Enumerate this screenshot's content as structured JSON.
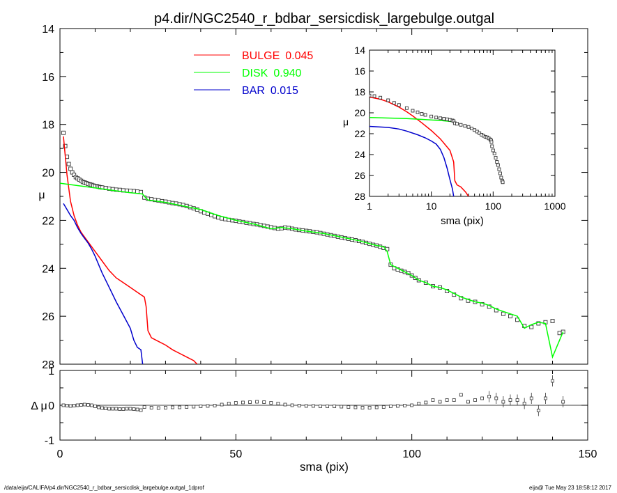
{
  "chart_data": [
    {
      "type": "line",
      "panel": "main",
      "title": "p4.dir/NGC2540_r_bdbar_sersicdisk_largebulge.outgal",
      "xlabel": "",
      "ylabel": "μ",
      "xlim": [
        0,
        150
      ],
      "ylim": [
        28,
        14
      ],
      "y_inverted": true,
      "yticks": [
        "14",
        "16",
        "18",
        "20",
        "22",
        "24",
        "26",
        "28"
      ],
      "legend": [
        {
          "label": "BULGE",
          "value": "0.045",
          "color": "#ff0000"
        },
        {
          "label": "DISK",
          "value": "0.940",
          "color": "#00ff00"
        },
        {
          "label": "BAR",
          "value": "0.015",
          "color": "#0000cc"
        }
      ],
      "legend_position": "top-center",
      "series": [
        {
          "name": "BULGE",
          "color": "#ff0000",
          "x": [
            1,
            2,
            3,
            4,
            5,
            6,
            7,
            8,
            10,
            12,
            14,
            16,
            18,
            20,
            22,
            23,
            24,
            24.5,
            25,
            26,
            28,
            30,
            32,
            34,
            36,
            38,
            39
          ],
          "y": [
            18.5,
            20.1,
            21.2,
            21.8,
            22.2,
            22.5,
            22.7,
            22.9,
            23.3,
            23.7,
            24.1,
            24.4,
            24.6,
            24.8,
            25.0,
            25.1,
            25.2,
            25.6,
            26.6,
            26.9,
            27.05,
            27.2,
            27.4,
            27.55,
            27.7,
            27.85,
            28.0
          ]
        },
        {
          "name": "DISK",
          "color": "#00ff00",
          "x": [
            0,
            5,
            10,
            15,
            20,
            23.5,
            24,
            25,
            30,
            35,
            40,
            45,
            50,
            55,
            60,
            63,
            66,
            70,
            75,
            80,
            85,
            90,
            92,
            93,
            94,
            96,
            98,
            100,
            102,
            104,
            106,
            108,
            110,
            112,
            114,
            116,
            118,
            120,
            122,
            124,
            126,
            128,
            130,
            132,
            134,
            136,
            138,
            140,
            142,
            143
          ],
          "y": [
            20.45,
            20.55,
            20.65,
            20.75,
            20.85,
            20.9,
            21.0,
            21.15,
            21.25,
            21.4,
            21.55,
            21.8,
            22.0,
            22.15,
            22.35,
            22.3,
            22.35,
            22.45,
            22.55,
            22.7,
            22.85,
            23.05,
            23.1,
            23.3,
            23.85,
            24.0,
            24.15,
            24.3,
            24.5,
            24.6,
            24.75,
            24.8,
            24.9,
            25.05,
            25.2,
            25.3,
            25.4,
            25.45,
            25.55,
            25.7,
            25.8,
            25.9,
            26.0,
            26.5,
            26.35,
            26.25,
            26.3,
            27.7,
            27.0,
            26.65
          ]
        },
        {
          "name": "BAR",
          "color": "#0000cc",
          "x": [
            1,
            2,
            3,
            4,
            5,
            6,
            7,
            8,
            9,
            10,
            11,
            12,
            14,
            16,
            18,
            20,
            21,
            22,
            23,
            23.5
          ],
          "y": [
            21.3,
            21.55,
            21.8,
            22.0,
            22.3,
            22.55,
            22.75,
            22.95,
            23.2,
            23.5,
            23.85,
            24.2,
            24.8,
            25.4,
            25.95,
            26.5,
            27.0,
            27.3,
            27.4,
            28.0
          ]
        },
        {
          "name": "data",
          "x": [
            1,
            1.5,
            2,
            2.5,
            3,
            3.5,
            4,
            4.5,
            5,
            5.5,
            6,
            6.5,
            7,
            7.5,
            8,
            8.5,
            9,
            9.5,
            10,
            10.5,
            11,
            11.5,
            12,
            13,
            14,
            15,
            16,
            17,
            18,
            19,
            20,
            21,
            22,
            23,
            24,
            25,
            26,
            27,
            28,
            29,
            30,
            31,
            32,
            33,
            34,
            35,
            36,
            37,
            38,
            39,
            40,
            41,
            42,
            43,
            44,
            45,
            46,
            47,
            48,
            49,
            50,
            51,
            52,
            53,
            54,
            55,
            56,
            57,
            58,
            59,
            60,
            61,
            62,
            63,
            64,
            65,
            66,
            67,
            68,
            69,
            70,
            71,
            72,
            73,
            74,
            75,
            76,
            77,
            78,
            79,
            80,
            81,
            82,
            83,
            84,
            85,
            86,
            87,
            88,
            89,
            90,
            91,
            92,
            93,
            94,
            95,
            96,
            97,
            98,
            99,
            100,
            101,
            102,
            104,
            106,
            108,
            110,
            112,
            114,
            116,
            118,
            120,
            122,
            124,
            126,
            128,
            130,
            132,
            134,
            136,
            138,
            140,
            142,
            143
          ],
          "y": [
            18.35,
            18.9,
            19.35,
            19.65,
            19.85,
            20.0,
            20.1,
            20.2,
            20.25,
            20.3,
            20.35,
            20.4,
            20.42,
            20.45,
            20.48,
            20.5,
            20.52,
            20.55,
            20.57,
            20.58,
            20.6,
            20.62,
            20.63,
            20.65,
            20.68,
            20.7,
            20.72,
            20.73,
            20.75,
            20.76,
            20.77,
            20.78,
            20.8,
            20.82,
            21.05,
            21.1,
            21.12,
            21.15,
            21.17,
            21.2,
            21.22,
            21.25,
            21.28,
            21.3,
            21.33,
            21.36,
            21.4,
            21.45,
            21.5,
            21.55,
            21.62,
            21.68,
            21.72,
            21.78,
            21.83,
            21.88,
            21.92,
            21.95,
            21.98,
            22.0,
            22.02,
            22.05,
            22.07,
            22.1,
            22.12,
            22.15,
            22.17,
            22.2,
            22.23,
            22.26,
            22.29,
            22.32,
            22.35,
            22.33,
            22.3,
            22.32,
            22.35,
            22.38,
            22.4,
            22.42,
            22.44,
            22.46,
            22.48,
            22.5,
            22.53,
            22.56,
            22.59,
            22.62,
            22.65,
            22.68,
            22.71,
            22.74,
            22.77,
            22.8,
            22.83,
            22.86,
            22.9,
            22.94,
            22.98,
            23.02,
            23.05,
            23.1,
            23.15,
            23.2,
            23.85,
            24.0,
            24.05,
            24.1,
            24.15,
            24.2,
            24.3,
            24.4,
            24.5,
            24.6,
            24.75,
            24.8,
            24.95,
            25.1,
            25.25,
            25.35,
            25.4,
            25.5,
            25.6,
            25.75,
            25.9,
            26.0,
            26.15,
            26.4,
            26.45,
            26.3,
            26.25,
            26.2,
            26.7,
            26.65
          ]
        }
      ]
    },
    {
      "type": "scatter",
      "panel": "residual",
      "xlabel": "sma (pix)",
      "ylabel": "Δ μ",
      "xlim": [
        0,
        150
      ],
      "ylim": [
        -1,
        1
      ],
      "xticks": [
        "0",
        "50",
        "100",
        "150"
      ],
      "yticks": [
        "-1",
        "0",
        "1"
      ],
      "series": [
        {
          "name": "residual",
          "x": [
            1,
            2,
            3,
            4,
            5,
            6,
            7,
            8,
            9,
            10,
            11,
            12,
            13,
            14,
            15,
            16,
            17,
            18,
            19,
            20,
            21,
            22,
            23,
            24,
            26,
            28,
            30,
            32,
            34,
            36,
            38,
            40,
            42,
            44,
            46,
            48,
            50,
            52,
            54,
            56,
            58,
            60,
            62,
            64,
            66,
            68,
            70,
            72,
            74,
            76,
            78,
            80,
            82,
            84,
            86,
            88,
            90,
            92,
            94,
            96,
            98,
            100,
            102,
            104,
            106,
            108,
            110,
            112,
            114,
            116,
            118,
            120,
            122,
            124,
            126,
            128,
            130,
            132,
            134,
            136,
            138,
            140,
            143
          ],
          "y": [
            0.0,
            -0.01,
            -0.02,
            -0.01,
            0.0,
            0.01,
            0.02,
            0.01,
            0.0,
            -0.03,
            -0.06,
            -0.08,
            -0.09,
            -0.1,
            -0.1,
            -0.1,
            -0.11,
            -0.11,
            -0.1,
            -0.1,
            -0.11,
            -0.12,
            -0.14,
            -0.05,
            -0.07,
            -0.08,
            -0.07,
            -0.06,
            -0.06,
            -0.05,
            -0.04,
            -0.03,
            -0.02,
            -0.01,
            0.02,
            0.05,
            0.07,
            0.08,
            0.09,
            0.1,
            0.09,
            0.07,
            0.05,
            0.02,
            0.0,
            -0.01,
            -0.02,
            -0.02,
            -0.03,
            -0.03,
            -0.03,
            -0.04,
            -0.05,
            -0.06,
            -0.07,
            -0.07,
            -0.06,
            -0.05,
            -0.03,
            -0.02,
            -0.01,
            0.0,
            0.05,
            0.08,
            0.15,
            0.1,
            0.15,
            0.15,
            0.3,
            0.1,
            0.15,
            0.2,
            0.25,
            0.2,
            0.1,
            0.15,
            0.15,
            0.05,
            0.2,
            -0.15,
            0.2,
            0.7,
            0.1
          ]
        }
      ]
    },
    {
      "type": "line",
      "panel": "inset",
      "xlabel": "sma (pix)",
      "ylabel": "μ",
      "x_scale": "log",
      "xlim": [
        1,
        1000
      ],
      "ylim": [
        28,
        14
      ],
      "y_inverted": true,
      "xticks": [
        "1",
        "10",
        "100",
        "1000"
      ],
      "yticks": [
        "14",
        "16",
        "18",
        "20",
        "22",
        "24",
        "26",
        "28"
      ],
      "series": [
        {
          "name": "BULGE",
          "color": "#ff0000",
          "x": [
            1,
            1.5,
            2,
            3,
            4,
            5,
            7,
            10,
            14,
            20,
            23,
            24,
            26,
            30,
            36,
            40
          ],
          "y": [
            18.5,
            18.7,
            18.95,
            19.45,
            19.9,
            20.3,
            20.95,
            21.7,
            22.5,
            23.6,
            24.7,
            26.5,
            26.9,
            27.1,
            27.6,
            28.0
          ]
        },
        {
          "name": "DISK",
          "color": "#00ff00",
          "x": [
            1,
            2,
            4,
            8,
            15,
            23,
            24
          ],
          "y": [
            20.45,
            20.5,
            20.55,
            20.65,
            20.75,
            20.85,
            21.0
          ]
        },
        {
          "name": "BAR",
          "color": "#0000cc",
          "x": [
            1,
            2,
            3,
            4,
            6,
            8,
            10,
            12,
            14,
            16,
            18,
            20,
            22,
            23
          ],
          "y": [
            21.3,
            21.4,
            21.55,
            21.75,
            22.1,
            22.4,
            22.7,
            23.0,
            23.5,
            24.3,
            25.3,
            26.4,
            27.3,
            28.0
          ]
        },
        {
          "name": "data",
          "x": [
            1,
            1.2,
            1.5,
            2,
            2.5,
            3,
            4,
            5,
            6,
            7,
            8,
            10,
            12,
            14,
            16,
            18,
            20,
            22,
            23,
            24,
            26,
            30,
            35,
            40,
            45,
            50,
            55,
            60,
            65,
            70,
            75,
            80,
            85,
            90,
            93,
            94,
            96,
            100,
            105,
            110,
            115,
            120,
            125,
            130,
            135,
            140,
            143
          ],
          "y": [
            18.35,
            18.4,
            18.55,
            18.8,
            19.05,
            19.25,
            19.55,
            19.8,
            19.95,
            20.1,
            20.2,
            20.35,
            20.45,
            20.52,
            20.57,
            20.62,
            20.68,
            20.73,
            20.8,
            21.0,
            21.05,
            21.15,
            21.25,
            21.35,
            21.5,
            21.65,
            21.8,
            21.95,
            22.1,
            22.2,
            22.3,
            22.35,
            22.45,
            22.55,
            22.65,
            22.8,
            23.2,
            23.6,
            23.9,
            24.3,
            24.7,
            25.0,
            25.4,
            25.8,
            26.2,
            26.5,
            26.65
          ]
        }
      ]
    }
  ],
  "footer": {
    "left": "/data/eija/CALIFA/p4.dir/NGC2540_r_bdbar_sersicdisk_largebulge.outgal_1dprof",
    "right": "eija@  Tue May 23 18:58:12 2017"
  }
}
